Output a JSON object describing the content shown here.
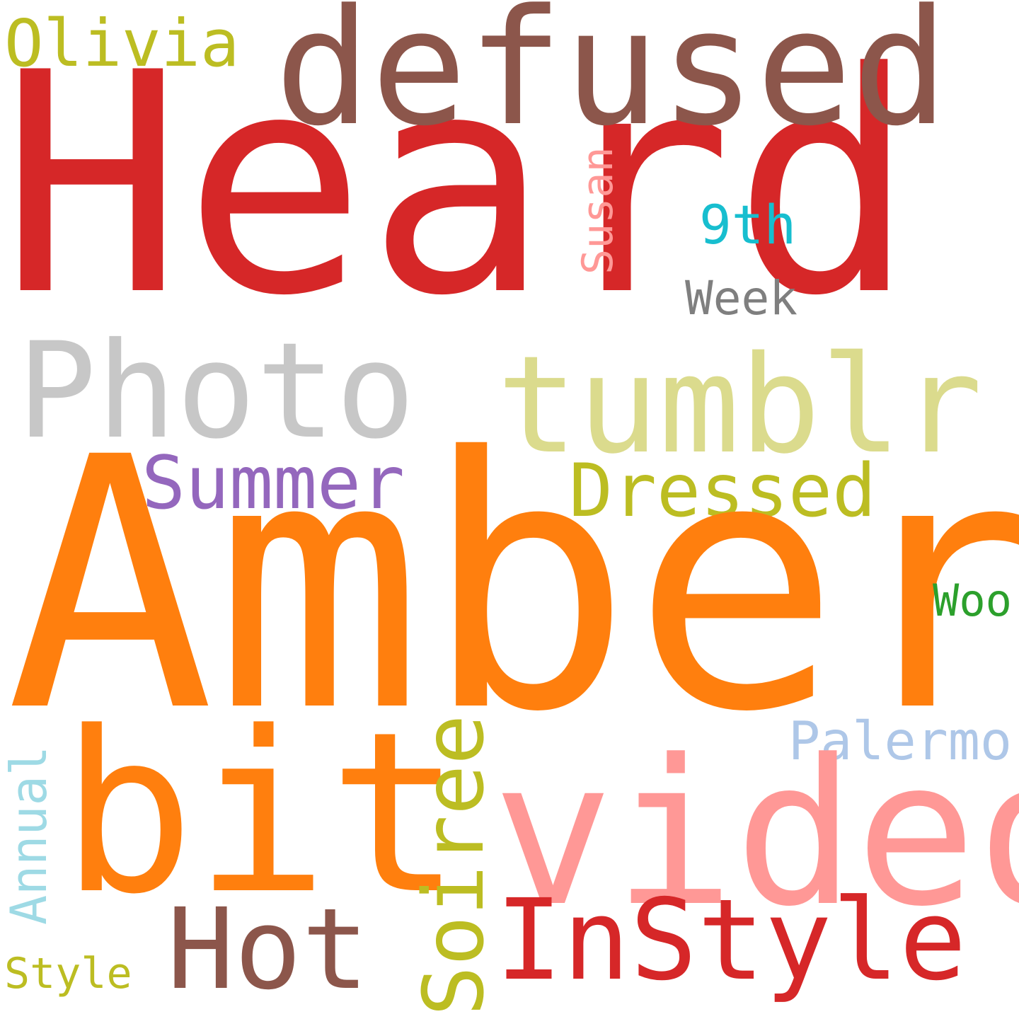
{
  "words": {
    "heard": {
      "text": "Heard",
      "color": "#d62728"
    },
    "amber": {
      "text": "Amber",
      "color": "#ff7f0e"
    },
    "defused": {
      "text": "defused",
      "color": "#8c564b"
    },
    "photo": {
      "text": "Photo",
      "color": "#c7c7c7"
    },
    "tumblr": {
      "text": "tumblr",
      "color": "#dbdb8d"
    },
    "bit": {
      "text": "bit",
      "color": "#ff7f0e"
    },
    "video": {
      "text": "video",
      "color": "#ff9896"
    },
    "instyle": {
      "text": "InStyle",
      "color": "#d62728"
    },
    "hot": {
      "text": "Hot",
      "color": "#8c564b"
    },
    "summer": {
      "text": "Summer",
      "color": "#9467bd"
    },
    "dressed": {
      "text": "Dressed",
      "color": "#bcbd22"
    },
    "olivia": {
      "text": "Olivia",
      "color": "#bcbd22"
    },
    "ninth": {
      "text": "9th",
      "color": "#17becf"
    },
    "week": {
      "text": "Week",
      "color": "#7f7f7f"
    },
    "woo": {
      "text": "Woo",
      "color": "#2ca02c"
    },
    "palermo": {
      "text": "Palermo",
      "color": "#aec7e8"
    },
    "style": {
      "text": "Style",
      "color": "#bcbd22"
    },
    "susan": {
      "text": "Susan",
      "color": "#ff9896"
    },
    "annual": {
      "text": "Annual",
      "color": "#9edae5"
    },
    "soiree": {
      "text": "Soiree",
      "color": "#bcbd22"
    }
  }
}
